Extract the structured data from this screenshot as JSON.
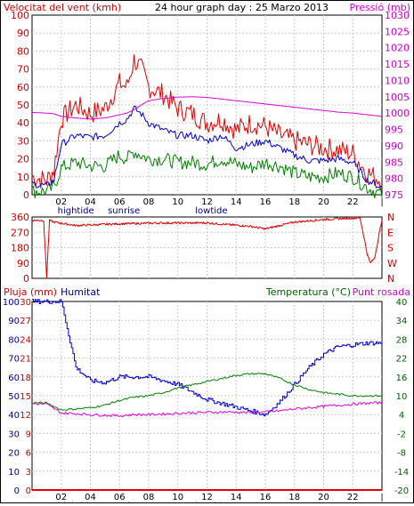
{
  "header": {
    "wind_label": "Velocitat del vent (kmh)",
    "graph_title": "24 hour graph day : 25 Marzo 2013",
    "pressure_label": "Pressió (mb)"
  },
  "lower_header": {
    "rain_label": "Pluja (mm)",
    "humidity_label": "Humitat",
    "temperature_label": "Temperatura (°C)",
    "dewpoint_label": "Punt rosada"
  },
  "x_ticks": [
    "02",
    "04",
    "06",
    "08",
    "10",
    "12",
    "14",
    "16",
    "18",
    "20",
    "22",
    "|"
  ],
  "annotations": [
    "hightide",
    "sunrise",
    "lowtide"
  ],
  "colors": {
    "wind_max": "#e00000",
    "wind_avg": "#0000cc",
    "wind_min": "#008000",
    "pressure": "#e000e0",
    "direction": "#e00000",
    "humidity": "#0000cc",
    "temperature": "#008000",
    "dewpoint": "#e000e0",
    "rain": "#e00000",
    "axis_text_red": "#d00000",
    "axis_text_magenta": "#d000d0",
    "axis_text_green": "#006000",
    "axis_text_navy": "#000080"
  },
  "chart_data": [
    {
      "type": "line",
      "title": "24 hour graph day : 25 Marzo 2013",
      "ylabel": "Velocitat del vent (kmh)",
      "y2label": "Pressió (mb)",
      "x": [
        0,
        1,
        1.5,
        2,
        3,
        4,
        5,
        6,
        6.5,
        7,
        7.5,
        8,
        9,
        10,
        11,
        12,
        13,
        14,
        15,
        16,
        17,
        18,
        19,
        20,
        21,
        22,
        23,
        24
      ],
      "ylim": [
        0,
        100
      ],
      "y_ticks": [
        "0",
        "10",
        "20",
        "30",
        "40",
        "50",
        "60",
        "70",
        "80",
        "90",
        "100"
      ],
      "y2lim": [
        975,
        1030
      ],
      "y2_ticks": [
        "975",
        "980",
        "985",
        "990",
        "995",
        "1000",
        "1005",
        "1010",
        "1015",
        "1020",
        "1025",
        "1030"
      ],
      "grid": true,
      "series": [
        {
          "values": [
            10,
            8,
            14,
            42,
            50,
            45,
            48,
            62,
            60,
            75,
            70,
            60,
            56,
            48,
            45,
            40,
            42,
            36,
            40,
            38,
            33,
            30,
            28,
            26,
            25,
            23,
            12,
            8
          ]
        },
        {
          "values": [
            6,
            5,
            8,
            28,
            33,
            32,
            33,
            40,
            42,
            48,
            45,
            40,
            36,
            33,
            33,
            30,
            33,
            26,
            28,
            30,
            26,
            22,
            19,
            19,
            20,
            18,
            8,
            4
          ]
        },
        {
          "values": [
            2,
            2,
            4,
            15,
            18,
            16,
            16,
            22,
            20,
            24,
            22,
            20,
            20,
            18,
            18,
            17,
            20,
            17,
            15,
            18,
            16,
            12,
            10,
            10,
            12,
            10,
            4,
            0
          ]
        },
        {
          "values": [
            1000.2,
            1000.0,
            999.8,
            999.0,
            998.5,
            998.2,
            998.5,
            999.5,
            1000.0,
            1001.0,
            1002.5,
            1003.8,
            1004.5,
            1004.9,
            1005.0,
            1004.8,
            1004.3,
            1003.8,
            1003.3,
            1002.8,
            1002.3,
            1001.8,
            1001.3,
            1000.8,
            1000.3,
            1000.0,
            999.5,
            999.0
          ]
        }
      ]
    },
    {
      "type": "line",
      "x": [
        0,
        0.8,
        1.0,
        1.2,
        1.5,
        3,
        6,
        9,
        12,
        15,
        16,
        17,
        18,
        20,
        21,
        22.5,
        23,
        23.2,
        23.5,
        24
      ],
      "ylim": [
        0,
        360
      ],
      "y_ticks": [
        "0",
        "90",
        "180",
        "270",
        "360"
      ],
      "y2_ticks": [
        "N",
        "W",
        "S",
        "E",
        "N"
      ],
      "grid": true,
      "series": [
        {
          "values": [
            340,
            340,
            5,
            340,
            330,
            310,
            320,
            325,
            325,
            305,
            290,
            310,
            330,
            345,
            350,
            355,
            140,
            90,
            120,
            345
          ]
        }
      ]
    },
    {
      "type": "line",
      "x": [
        0,
        1,
        2,
        3,
        4,
        5,
        6,
        7,
        8,
        9,
        10,
        11,
        12,
        13,
        14,
        15,
        16,
        17,
        18,
        19,
        20,
        21,
        22,
        23,
        24
      ],
      "ylim": [
        0,
        100
      ],
      "y_ticks": [
        "0",
        "10",
        "20",
        "30",
        "40",
        "50",
        "60",
        "70",
        "80",
        "90",
        "100"
      ],
      "y_rain_ticks": [
        "0",
        "3",
        "6",
        "9",
        "12",
        "15",
        "18",
        "21",
        "24",
        "27",
        "30"
      ],
      "y2lim": [
        -20,
        40
      ],
      "y2_ticks": [
        "-20",
        "-14",
        "-8",
        "-2",
        "4",
        "10",
        "16",
        "22",
        "28",
        "34",
        "40"
      ],
      "grid": true,
      "series": [
        {
          "values": [
            100,
            100,
            100,
            65,
            58,
            57,
            60,
            60,
            60,
            58,
            56,
            52,
            48,
            46,
            44,
            42,
            40,
            47,
            56,
            65,
            72,
            76,
            77,
            78,
            78
          ]
        },
        {
          "values": [
            7.8,
            7.7,
            5.5,
            5.8,
            6.2,
            7.0,
            8.5,
            9.5,
            10.0,
            11.0,
            12.5,
            13.5,
            14.5,
            15.5,
            16.5,
            17.0,
            17.0,
            15.5,
            13.5,
            12.0,
            11.0,
            10.5,
            10.0,
            10.0,
            10.0
          ]
        },
        {
          "values": [
            7.5,
            7.3,
            4.5,
            4.3,
            4.0,
            3.8,
            3.6,
            4.0,
            4.0,
            4.2,
            4.4,
            4.6,
            4.7,
            4.8,
            4.8,
            4.6,
            4.8,
            5.2,
            5.8,
            6.2,
            6.6,
            7.0,
            7.3,
            7.6,
            7.8
          ]
        },
        {
          "values": [
            0,
            0,
            0,
            0,
            0,
            0,
            0,
            0,
            0,
            0,
            0,
            0,
            0,
            0,
            0,
            0,
            0,
            0,
            0,
            0,
            0,
            0,
            0,
            0,
            0
          ]
        }
      ]
    }
  ]
}
